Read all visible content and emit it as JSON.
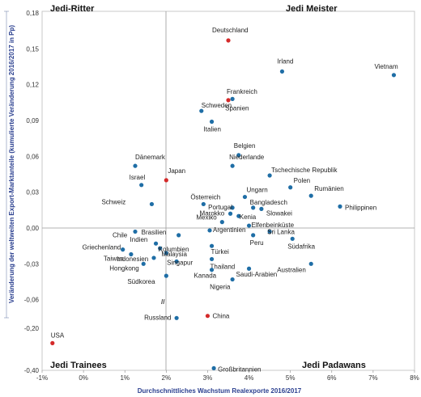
{
  "chart_data": {
    "type": "scatter",
    "xlabel": "Durchschnittliches  Wachstum Realexporte 2016/2017",
    "ylabel": "Veränderung der weltweiten Export-Marktanteile (kumulierte Veränderung 2016/2017  in Pp)",
    "x_ticks": [
      "-1%",
      "0%",
      "1%",
      "2%",
      "3%",
      "4%",
      "5%",
      "6%",
      "7%",
      "8%"
    ],
    "x_tick_values": [
      -1,
      0,
      1,
      2,
      3,
      4,
      5,
      6,
      7,
      8
    ],
    "y_ticks_upper": [
      "0,18",
      "0,15",
      "0,12",
      "0,09",
      "0,06",
      "0,03",
      "0,00",
      "-0,03",
      "-0,06"
    ],
    "y_tick_values_upper": [
      0.18,
      0.15,
      0.12,
      0.09,
      0.06,
      0.03,
      0.0,
      -0.03,
      -0.06
    ],
    "y_ticks_lower": [
      "-0,20",
      "-0,40"
    ],
    "y_tick_values_lower": [
      -0.2,
      -0.4
    ],
    "axis_break": "//",
    "xlim": [
      -1,
      8
    ],
    "quadrants": {
      "top_left": "Jedi-Ritter",
      "top_right": "Jedi Meister",
      "bottom_left": "Jedi Trainees",
      "bottom_right": "Jedi Padawans"
    },
    "colors": {
      "normal": "#1f6ea6",
      "highlight": "#d42a2a",
      "axis_label": "#2a3f8f"
    },
    "points": [
      {
        "name": "Deutschland",
        "x": 3.5,
        "y": 0.157,
        "hl": true
      },
      {
        "name": "Irland",
        "x": 4.8,
        "y": 0.131
      },
      {
        "name": "Vietnam",
        "x": 7.5,
        "y": 0.128
      },
      {
        "name": "Frankreich",
        "x": 3.5,
        "y": 0.107,
        "hl": true
      },
      {
        "name": "Spanien",
        "x": 3.6,
        "y": 0.108
      },
      {
        "name": "Schweden",
        "x": 2.85,
        "y": 0.098
      },
      {
        "name": "Italien",
        "x": 3.1,
        "y": 0.089
      },
      {
        "name": "Belgien",
        "x": 3.75,
        "y": 0.061
      },
      {
        "name": "Niederlande",
        "x": 3.6,
        "y": 0.052
      },
      {
        "name": "Tschechische Republik",
        "x": 4.5,
        "y": 0.044
      },
      {
        "name": "Polen",
        "x": 5.0,
        "y": 0.034
      },
      {
        "name": "Rumänien",
        "x": 5.5,
        "y": 0.027
      },
      {
        "name": "Philippinen",
        "x": 6.2,
        "y": 0.018
      },
      {
        "name": "Dänemark",
        "x": 1.25,
        "y": 0.052
      },
      {
        "name": "Japan",
        "x": 2.0,
        "y": 0.04,
        "hl": true
      },
      {
        "name": "Israel",
        "x": 1.4,
        "y": 0.036
      },
      {
        "name": "Schweiz",
        "x": 1.65,
        "y": 0.02
      },
      {
        "name": "Ungarn",
        "x": 3.9,
        "y": 0.026
      },
      {
        "name": "Bangladesch",
        "x": 4.1,
        "y": 0.017
      },
      {
        "name": "Slowakei",
        "x": 4.3,
        "y": 0.016
      },
      {
        "name": "Österreich",
        "x": 2.9,
        "y": 0.02
      },
      {
        "name": "Portugal",
        "x": 3.6,
        "y": 0.017
      },
      {
        "name": "Marokko",
        "x": 3.55,
        "y": 0.012
      },
      {
        "name": "Kenia",
        "x": 3.75,
        "y": 0.01
      },
      {
        "name": "Mexiko",
        "x": 3.35,
        "y": 0.005
      },
      {
        "name": "Elfenbeinküste",
        "x": 4.0,
        "y": 0.002
      },
      {
        "name": "Argentinien",
        "x": 3.05,
        "y": -0.002
      },
      {
        "name": "Sri Lanka",
        "x": 4.5,
        "y": -0.003
      },
      {
        "name": "Brasilien",
        "x": 2.3,
        "y": -0.006
      },
      {
        "name": "Chile",
        "x": 1.25,
        "y": -0.003
      },
      {
        "name": "Peru",
        "x": 4.1,
        "y": -0.006
      },
      {
        "name": "Südafrika",
        "x": 5.05,
        "y": -0.009
      },
      {
        "name": "Indien",
        "x": 1.75,
        "y": -0.013
      },
      {
        "name": "Türkei",
        "x": 3.1,
        "y": -0.015
      },
      {
        "name": "Kolumbien",
        "x": 1.85,
        "y": -0.017
      },
      {
        "name": "Griechenland",
        "x": 0.95,
        "y": -0.018
      },
      {
        "name": "Malaysia",
        "x": 2.0,
        "y": -0.021
      },
      {
        "name": "Thailand",
        "x": 3.1,
        "y": -0.026
      },
      {
        "name": "Taiwan",
        "x": 1.15,
        "y": -0.022
      },
      {
        "name": "Indonesien",
        "x": 1.7,
        "y": -0.025
      },
      {
        "name": "Singapur",
        "x": 2.25,
        "y": -0.028
      },
      {
        "name": "Hongkong",
        "x": 1.45,
        "y": -0.03
      },
      {
        "name": "Australien",
        "x": 5.5,
        "y": -0.03
      },
      {
        "name": "Kanada",
        "x": 3.1,
        "y": -0.035
      },
      {
        "name": "Saudi-Arabien",
        "x": 4.0,
        "y": -0.034
      },
      {
        "name": "Südkorea",
        "x": 2.0,
        "y": -0.04
      },
      {
        "name": "Nigeria",
        "x": 3.6,
        "y": -0.043
      },
      {
        "name": "China",
        "x": 3.0,
        "y": -0.14,
        "hl": true
      },
      {
        "name": "Russland",
        "x": 2.25,
        "y": -0.15
      },
      {
        "name": "USA",
        "x": -0.75,
        "y": -0.27,
        "hl": true
      },
      {
        "name": "Großbritannien",
        "x": 3.15,
        "y": -0.39
      }
    ]
  }
}
